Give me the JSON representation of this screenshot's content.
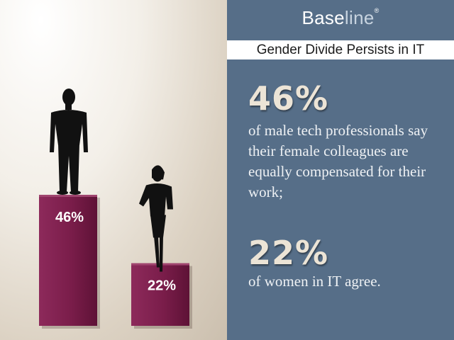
{
  "brand": {
    "name": "Base",
    "name_light": "line",
    "mark": "®"
  },
  "title": "Gender Divide Persists in IT",
  "stats": [
    {
      "value": "46%",
      "text": "of male tech professionals say their female colleagues are equally compensated for their work;"
    },
    {
      "value": "22%",
      "text": "of women in IT agree."
    }
  ],
  "colors": {
    "bar": "#7a1d4a",
    "panel": "#566e88",
    "stat_text": "#ece4d6"
  },
  "chart_data": {
    "type": "bar",
    "categories": [
      "",
      ""
    ],
    "values": [
      46,
      22
    ],
    "labels": [
      "46%",
      "22%"
    ],
    "ylim": [
      0,
      50
    ],
    "title": "",
    "xlabel": "",
    "ylabel": "",
    "grid": false,
    "icons": [
      "male-silhouette-icon",
      "female-silhouette-icon"
    ]
  }
}
